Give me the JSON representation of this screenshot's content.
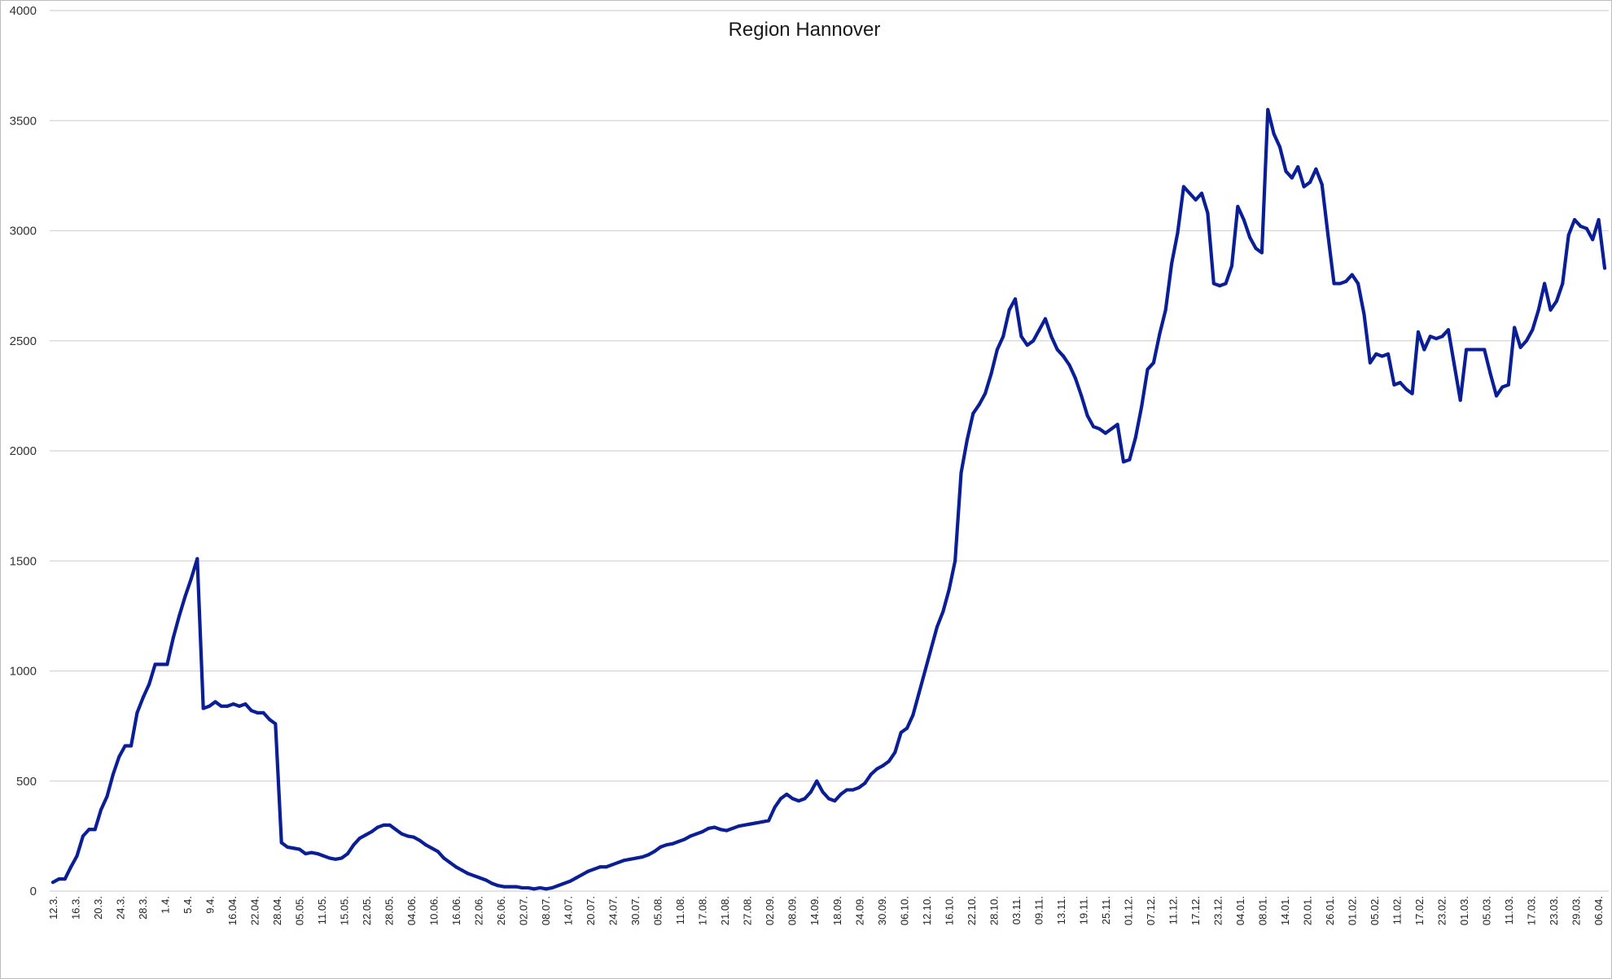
{
  "chart_data": {
    "type": "line",
    "title": "Region Hannover",
    "xlabel": "",
    "ylabel": "",
    "ylim": [
      0,
      4000
    ],
    "grid": true,
    "legend": "none",
    "y_ticks": [
      0,
      500,
      1000,
      1500,
      2000,
      2500,
      3000,
      3500,
      4000
    ],
    "x_tick_labels": [
      "12.3.",
      "16.3.",
      "20.3.",
      "24.3.",
      "28.3.",
      "1.4.",
      "5.4.",
      "9.4.",
      "16.04.",
      "22.04.",
      "28.04.",
      "05.05.",
      "11.05.",
      "15.05.",
      "22.05.",
      "28.05.",
      "04.06.",
      "10.06.",
      "16.06.",
      "22.06.",
      "26.06.",
      "02.07.",
      "08.07.",
      "14.07.",
      "20.07.",
      "24.07.",
      "30.07.",
      "05.08.",
      "11.08.",
      "17.08.",
      "21.08.",
      "27.08.",
      "02.09.",
      "08.09.",
      "14.09.",
      "18.09.",
      "24.09.",
      "30.09.",
      "06.10.",
      "12.10.",
      "16.10.",
      "22.10.",
      "28.10.",
      "03.11.",
      "09.11.",
      "13.11.",
      "19.11.",
      "25.11.",
      "01.12.",
      "07.12.",
      "11.12.",
      "17.12.",
      "23.12.",
      "04.01.",
      "08.01.",
      "14.01.",
      "20.01.",
      "26.01.",
      "01.02.",
      "05.02.",
      "11.02.",
      "17.02.",
      "23.02.",
      "01.03.",
      "05.03.",
      "11.03.",
      "17.03.",
      "23.03.",
      "29.03.",
      "06.04."
    ],
    "series": [
      {
        "color": "#0a1f96",
        "values": [
          40,
          55,
          55,
          110,
          160,
          250,
          280,
          280,
          370,
          430,
          530,
          610,
          660,
          660,
          810,
          880,
          940,
          1030,
          1030,
          1030,
          1150,
          1250,
          1340,
          1420,
          1510,
          830,
          840,
          860,
          840,
          840,
          850,
          840,
          850,
          820,
          810,
          810,
          780,
          760,
          220,
          200,
          195,
          190,
          170,
          175,
          170,
          160,
          150,
          145,
          150,
          170,
          210,
          240,
          255,
          270,
          290,
          300,
          300,
          280,
          260,
          250,
          245,
          230,
          210,
          195,
          180,
          150,
          130,
          110,
          95,
          80,
          70,
          60,
          50,
          35,
          25,
          20,
          20,
          20,
          15,
          15,
          10,
          15,
          10,
          15,
          25,
          35,
          45,
          60,
          75,
          90,
          100,
          110,
          110,
          120,
          130,
          140,
          145,
          150,
          155,
          165,
          180,
          200,
          210,
          215,
          225,
          235,
          250,
          260,
          270,
          285,
          290,
          280,
          275,
          285,
          295,
          300,
          305,
          310,
          315,
          320,
          380,
          420,
          440,
          420,
          410,
          420,
          450,
          500,
          450,
          420,
          410,
          440,
          460,
          460,
          470,
          490,
          530,
          555,
          570,
          590,
          630,
          720,
          740,
          800,
          900,
          1000,
          1100,
          1200,
          1270,
          1370,
          1500,
          1900,
          2050,
          2170,
          2210,
          2260,
          2350,
          2460,
          2520,
          2640,
          2690,
          2520,
          2480,
          2500,
          2550,
          2600,
          2520,
          2460,
          2430,
          2390,
          2330,
          2250,
          2160,
          2110,
          2100,
          2080,
          2100,
          2120,
          1950,
          1960,
          2060,
          2200,
          2370,
          2400,
          2530,
          2640,
          2850,
          2990,
          3200,
          3170,
          3140,
          3170,
          3080,
          2760,
          2750,
          2760,
          2840,
          3110,
          3050,
          2970,
          2920,
          2900,
          3550,
          3440,
          3380,
          3270,
          3240,
          3290,
          3200,
          3220,
          3280,
          3210,
          2980,
          2760,
          2760,
          2770,
          2800,
          2760,
          2620,
          2400,
          2440,
          2430,
          2440,
          2300,
          2310,
          2280,
          2260,
          2540,
          2460,
          2520,
          2510,
          2520,
          2550,
          2390,
          2230,
          2460,
          2460,
          2460,
          2460,
          2350,
          2250,
          2290,
          2300,
          2560,
          2470,
          2500,
          2550,
          2640,
          2760,
          2640,
          2680,
          2760,
          2980,
          3050,
          3020,
          3010,
          2960,
          3050,
          2830
        ]
      }
    ]
  }
}
